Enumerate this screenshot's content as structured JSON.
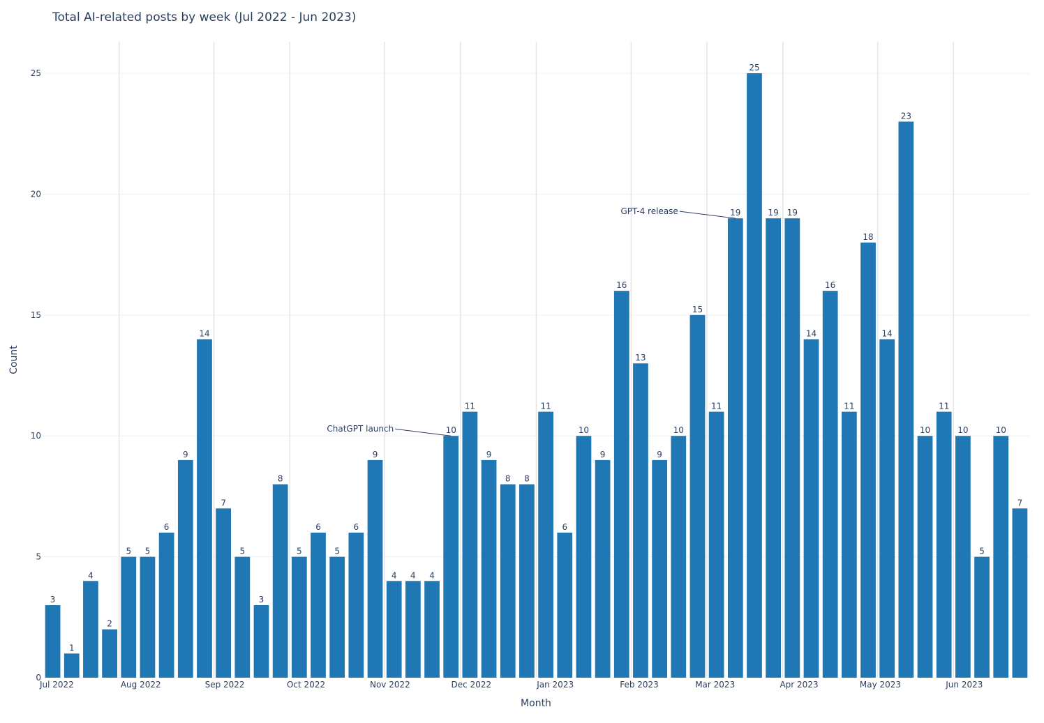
{
  "chart_data": {
    "type": "bar",
    "title": "Total AI-related posts by week (Jul 2022 - Jun 2023)",
    "xlabel": "Month",
    "ylabel": "Count",
    "ylim": [
      0,
      26.3
    ],
    "yticks": [
      0,
      5,
      10,
      15,
      20,
      25
    ],
    "grid": true,
    "bar_color": "#1f77b4",
    "series": [
      {
        "values": [
          3,
          1,
          4,
          2,
          5,
          5,
          6,
          9,
          14,
          7,
          5,
          3,
          8,
          5,
          6,
          5,
          6,
          9,
          4,
          4,
          4,
          10,
          11,
          9,
          8,
          8,
          11,
          6,
          10,
          9,
          16,
          13,
          9,
          10,
          15,
          11,
          19,
          25,
          19,
          19,
          14,
          16,
          11,
          18,
          14,
          23,
          10,
          11,
          10,
          5,
          10,
          7
        ]
      }
    ],
    "x": [
      "2022-06-26",
      "2022-07-03",
      "2022-07-10",
      "2022-07-17",
      "2022-07-24",
      "2022-07-31",
      "2022-08-07",
      "2022-08-14",
      "2022-08-21",
      "2022-08-28",
      "2022-09-04",
      "2022-09-11",
      "2022-09-18",
      "2022-09-25",
      "2022-10-02",
      "2022-10-09",
      "2022-10-16",
      "2022-10-23",
      "2022-10-30",
      "2022-11-06",
      "2022-11-13",
      "2022-11-20",
      "2022-11-27",
      "2022-12-04",
      "2022-12-11",
      "2022-12-18",
      "2022-12-25",
      "2023-01-01",
      "2023-01-08",
      "2023-01-15",
      "2023-01-22",
      "2023-01-29",
      "2023-02-05",
      "2023-02-12",
      "2023-02-19",
      "2023-02-26",
      "2023-03-05",
      "2023-03-12",
      "2023-03-19",
      "2023-03-26",
      "2023-04-02",
      "2023-04-09",
      "2023-04-16",
      "2023-04-23",
      "2023-04-30",
      "2023-05-07",
      "2023-05-14",
      "2023-05-21",
      "2023-05-28",
      "2023-06-04",
      "2023-06-11",
      "2023-06-18"
    ],
    "month_ticks": [
      {
        "label": "Jul 2022",
        "date": "2022-07-01"
      },
      {
        "label": "Aug 2022",
        "date": "2022-08-01"
      },
      {
        "label": "Sep 2022",
        "date": "2022-09-01"
      },
      {
        "label": "Oct 2022",
        "date": "2022-10-01"
      },
      {
        "label": "Nov 2022",
        "date": "2022-11-01"
      },
      {
        "label": "Dec 2022",
        "date": "2022-12-01"
      },
      {
        "label": "Jan 2023",
        "date": "2023-01-01"
      },
      {
        "label": "Feb 2023",
        "date": "2023-02-01"
      },
      {
        "label": "Mar 2023",
        "date": "2023-03-01"
      },
      {
        "label": "Apr 2023",
        "date": "2023-04-01"
      },
      {
        "label": "May 2023",
        "date": "2023-05-01"
      },
      {
        "label": "Jun 2023",
        "date": "2023-06-01"
      }
    ],
    "vertical_grid_dates": [
      "2022-07-24",
      "2022-08-28",
      "2022-09-25",
      "2022-10-30",
      "2022-11-27",
      "2022-12-25",
      "2023-01-29",
      "2023-02-26",
      "2023-03-26",
      "2023-04-30",
      "2023-05-28"
    ],
    "annotations": [
      {
        "text": "ChatGPT launch",
        "bar_index": 21
      },
      {
        "text": "GPT-4 release",
        "bar_index": 36
      }
    ]
  }
}
